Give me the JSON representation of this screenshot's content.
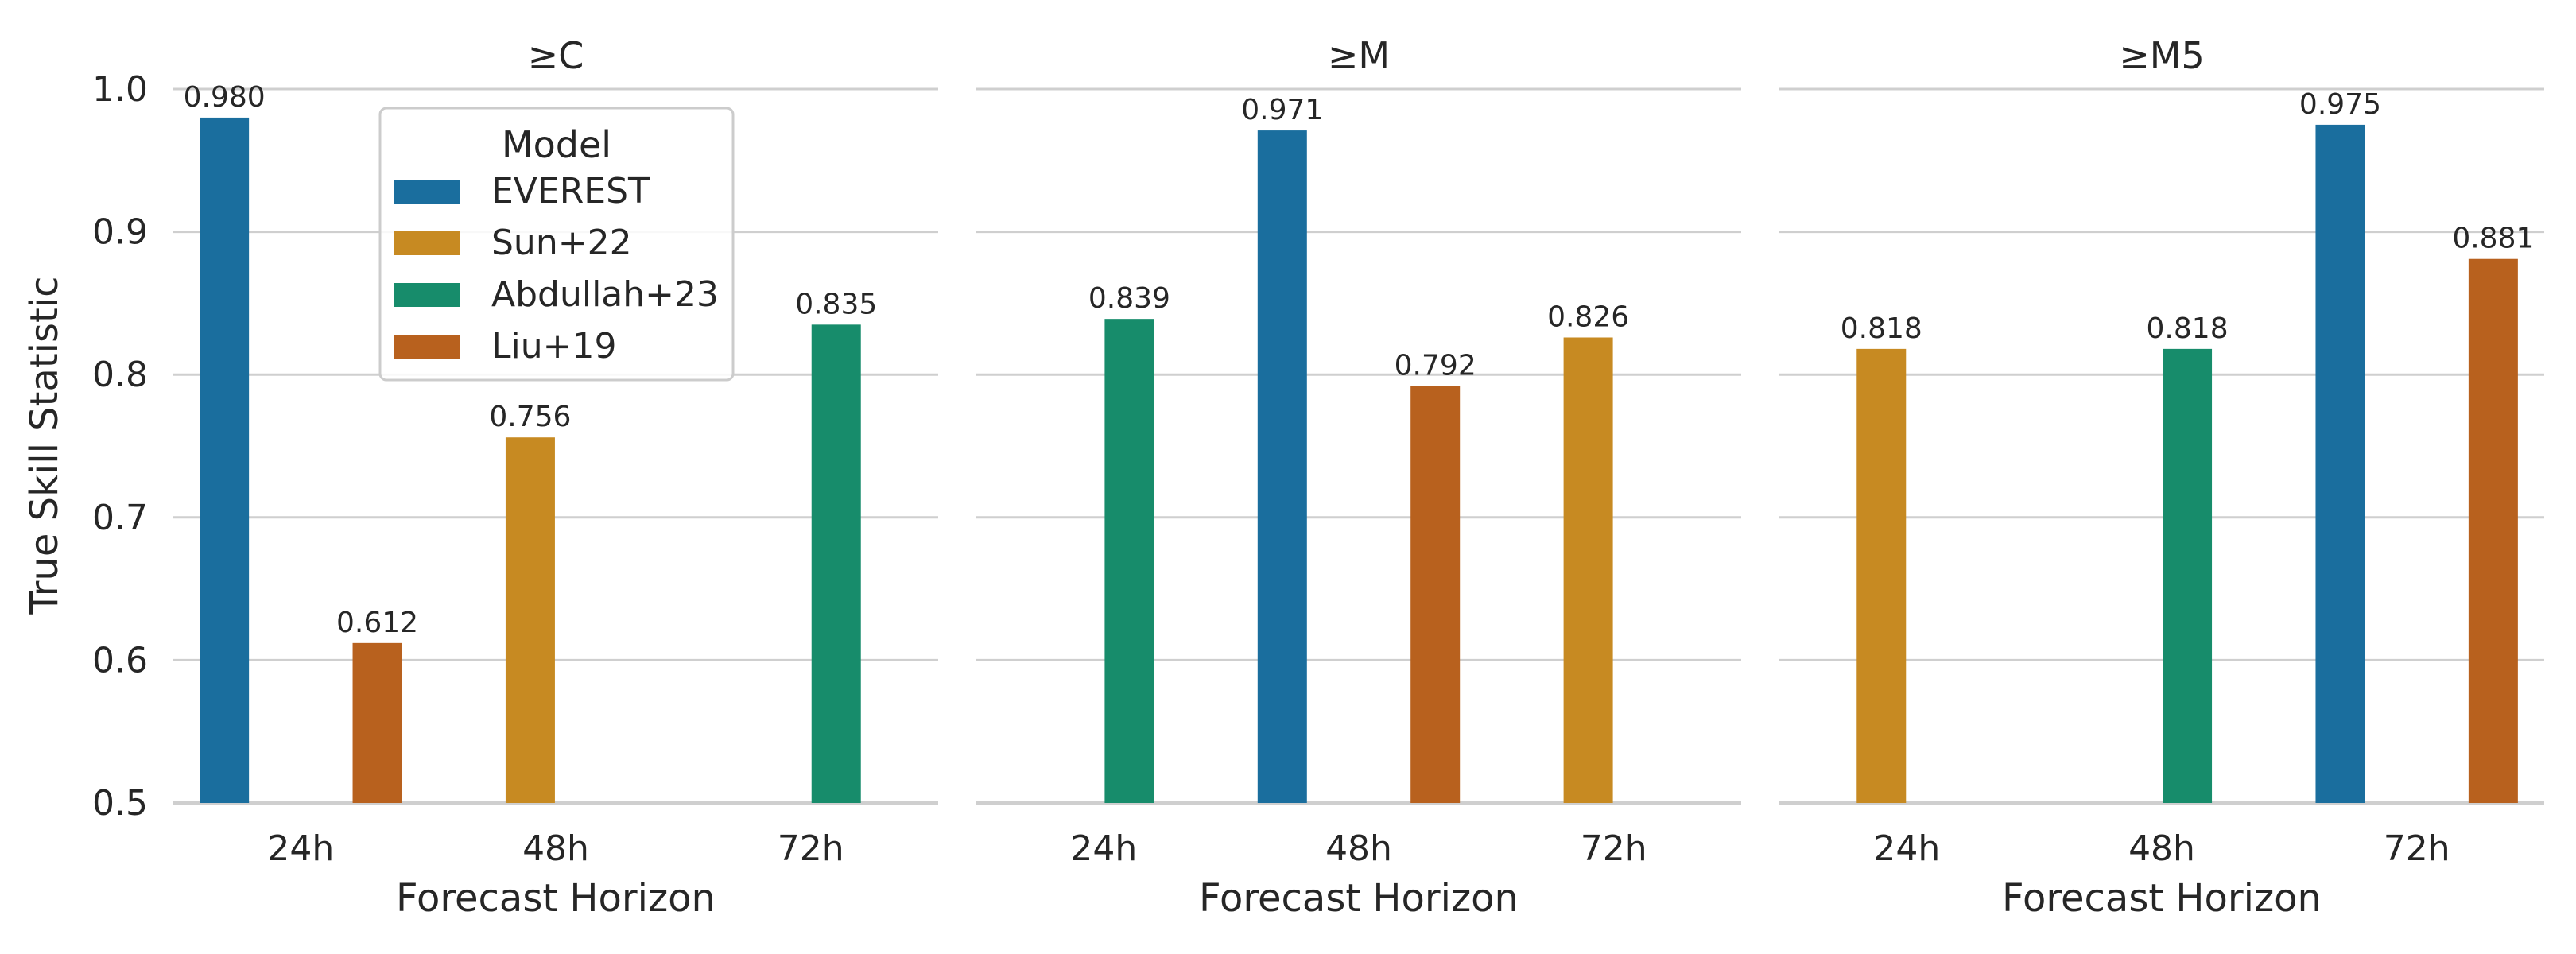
{
  "chart_data": {
    "type": "bar",
    "ylabel": "True Skill Statistic",
    "xlabel": "Forecast Horizon",
    "ylim": [
      0.5,
      1.0
    ],
    "yticks": [
      "0.5",
      "0.6",
      "0.7",
      "0.8",
      "0.9",
      "1.0"
    ],
    "categories": [
      "24h",
      "48h",
      "72h"
    ],
    "grid": "horizontal",
    "legend": {
      "title": "Model",
      "placement": "top, inside first panel",
      "entries": [
        "EVEREST",
        "Sun+22",
        "Abdullah+23",
        "Liu+19"
      ]
    },
    "colors": {
      "EVEREST": "#1a6e9e",
      "Sun+22": "#c78a22",
      "Abdullah+23": "#178c6b",
      "Liu+19": "#b8611e"
    },
    "panels": [
      {
        "title": "≥C",
        "bars": [
          {
            "category": "24h",
            "model": "EVEREST",
            "value": 0.98,
            "label": "0.980"
          },
          {
            "category": "24h",
            "model": "Liu+19",
            "value": 0.612,
            "label": "0.612"
          },
          {
            "category": "48h",
            "model": "Sun+22",
            "value": 0.756,
            "label": "0.756"
          },
          {
            "category": "72h",
            "model": "Abdullah+23",
            "value": 0.835,
            "label": "0.835"
          }
        ]
      },
      {
        "title": "≥M",
        "bars": [
          {
            "category": "24h",
            "model": "Abdullah+23",
            "value": 0.839,
            "label": "0.839"
          },
          {
            "category": "48h",
            "model": "EVEREST",
            "value": 0.971,
            "label": "0.971"
          },
          {
            "category": "48h",
            "model": "Liu+19",
            "value": 0.792,
            "label": "0.792"
          },
          {
            "category": "72h",
            "model": "Sun+22",
            "value": 0.826,
            "label": "0.826"
          }
        ]
      },
      {
        "title": "≥M5",
        "bars": [
          {
            "category": "24h",
            "model": "Sun+22",
            "value": 0.818,
            "label": "0.818"
          },
          {
            "category": "48h",
            "model": "Abdullah+23",
            "value": 0.818,
            "label": "0.818"
          },
          {
            "category": "72h",
            "model": "EVEREST",
            "value": 0.975,
            "label": "0.975"
          },
          {
            "category": "72h",
            "model": "Liu+19",
            "value": 0.881,
            "label": "0.881"
          }
        ]
      }
    ]
  }
}
